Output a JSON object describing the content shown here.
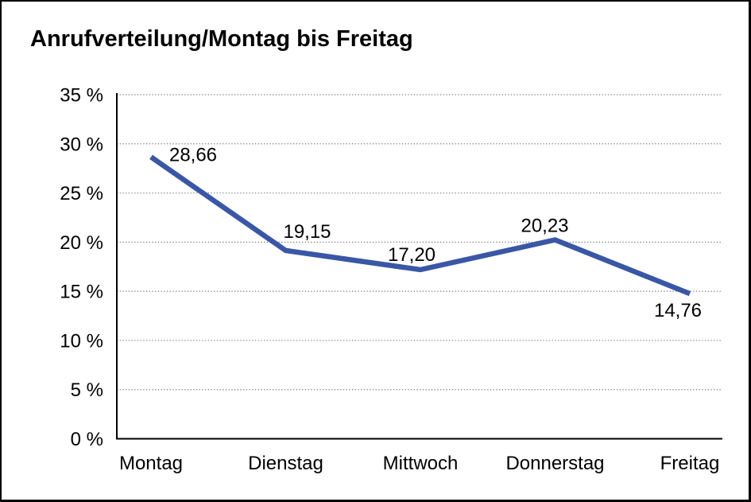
{
  "title": "Anrufverteilung/Montag bis Freitag",
  "chart_data": {
    "type": "line",
    "title": "Anrufverteilung/Montag bis Freitag",
    "categories": [
      "Montag",
      "Dienstag",
      "Mittwoch",
      "Donnerstag",
      "Freitag"
    ],
    "values": [
      28.66,
      19.15,
      17.2,
      20.23,
      14.76
    ],
    "value_labels": [
      "28,66",
      "19,15",
      "17,20",
      "20,23",
      "14,76"
    ],
    "series_name": "Anrufverteilung",
    "xlabel": "",
    "ylabel": "",
    "ylim": [
      0,
      35
    ],
    "ytick_step": 5,
    "ytick_labels": [
      "0 %",
      "5 %",
      "10 %",
      "15 %",
      "20 %",
      "25 %",
      "30 %",
      "35 %"
    ],
    "grid": "horizontal-dotted",
    "legend_position": "none",
    "colors": {
      "line": "#3A57A6",
      "grid": "#7a7a7a",
      "axis": "#000000",
      "text": "#000000",
      "background": "#ffffff",
      "frame_border": "#000000"
    }
  }
}
